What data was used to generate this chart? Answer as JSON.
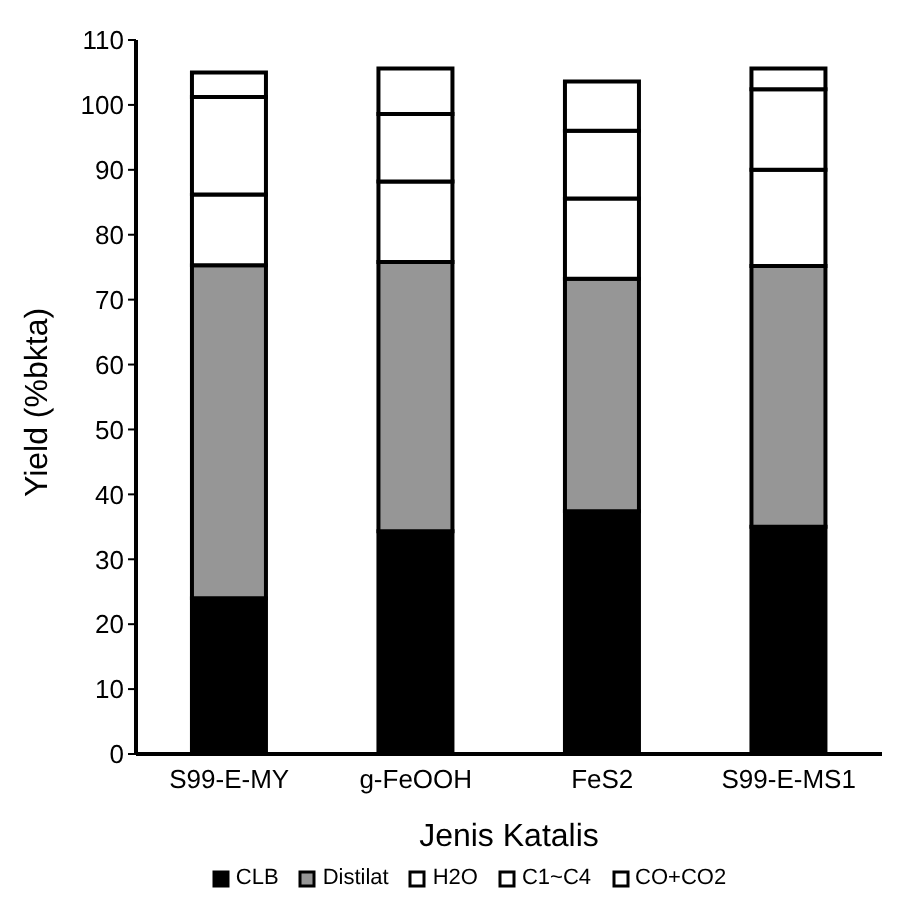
{
  "chart_data": {
    "type": "bar",
    "stacked": true,
    "xlabel": "Jenis Katalis",
    "ylabel": "Yield (%bkta)",
    "categories": [
      "S99-E-MY",
      "g-FeOOH",
      "FeS2",
      "S99-E-MS1"
    ],
    "series": [
      {
        "name": "CLB",
        "color": "#000000",
        "values": [
          24,
          34.3,
          37.4,
          35
        ]
      },
      {
        "name": "Distilat",
        "color": "#969696",
        "values": [
          51.3,
          41.5,
          35.8,
          40.2
        ]
      },
      {
        "name": "H2O",
        "color": "#ffffff",
        "values": [
          10.9,
          12.4,
          12.4,
          14.8
        ]
      },
      {
        "name": "C1~C4",
        "color": "#ffffff",
        "values": [
          15,
          10.4,
          10.4,
          12.4
        ]
      },
      {
        "name": "CO+CO2",
        "color": "#ffffff",
        "values": [
          3.8,
          7,
          7.6,
          3.2
        ]
      }
    ],
    "ylim": [
      0,
      110
    ],
    "yticks": [
      0,
      10,
      20,
      30,
      40,
      50,
      60,
      70,
      80,
      90,
      100,
      110
    ],
    "grid": false,
    "legend": "bottom"
  }
}
